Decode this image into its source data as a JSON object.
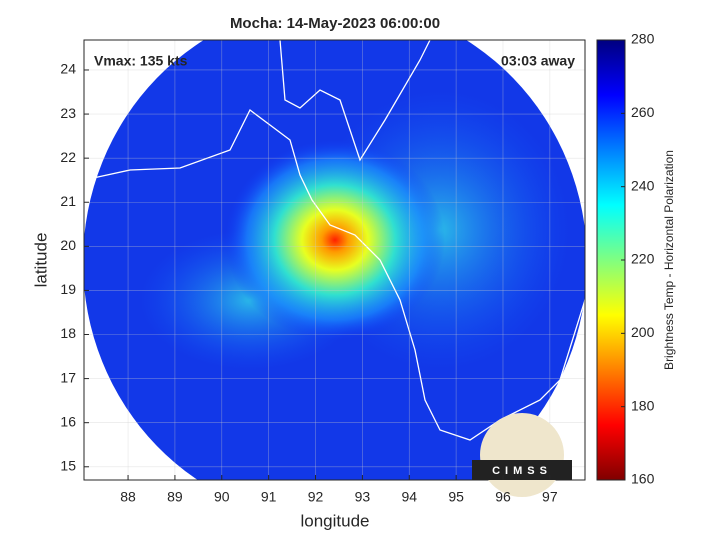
{
  "chart_data": {
    "type": "image",
    "title": "Mocha: 14-May-2023 06:00:00",
    "annotations": [
      "Vmax: 135 kts",
      "03:03 away"
    ],
    "xlabel": "longitude",
    "ylabel": "latitude",
    "xlim": [
      87.06,
      97.75
    ],
    "xticks": [
      88,
      89,
      90,
      91,
      92,
      93,
      94,
      95,
      96,
      97
    ],
    "ylim": [
      14.7,
      24.68
    ],
    "yticks": [
      15,
      16,
      17,
      18,
      19,
      20,
      21,
      22,
      23,
      24
    ],
    "grid": true,
    "colorbar": {
      "label": "Brightness Temp - Horizontal Polarization",
      "clim": [
        160,
        280
      ],
      "ticks": [
        160,
        180,
        200,
        220,
        240,
        260,
        280
      ],
      "colormap": [
        "#800000",
        "#ff0000",
        "#ff8000",
        "#ffff00",
        "#80ff80",
        "#00ffff",
        "#0080ff",
        "#0000ff",
        "#000080"
      ]
    },
    "logo": "CIMSS"
  }
}
